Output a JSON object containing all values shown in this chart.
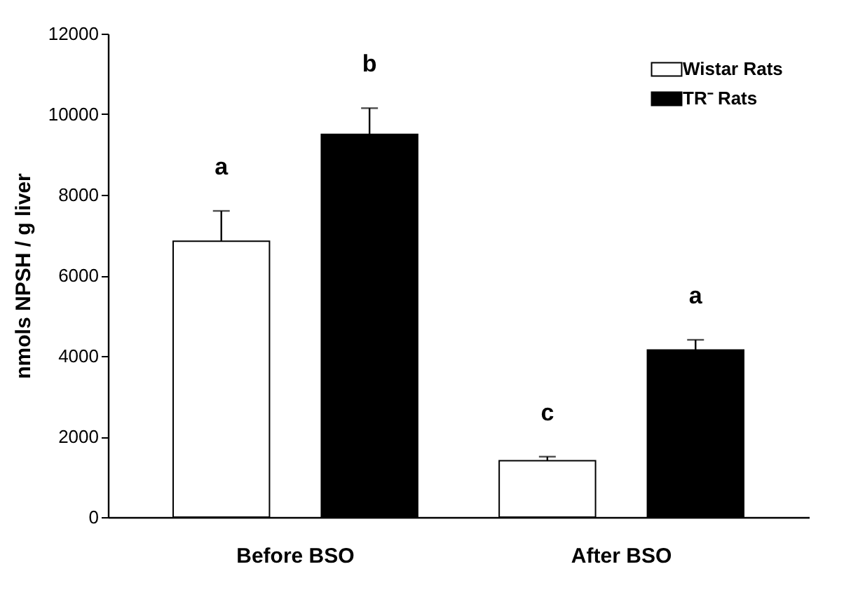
{
  "chart_data": {
    "type": "bar",
    "ylabel": "nmols NPSH / g liver",
    "categories": [
      "Before BSO",
      "After BSO"
    ],
    "series": [
      {
        "name": "Wistar Rats",
        "color": "#ffffff",
        "values": [
          6850,
          1400
        ],
        "errors": [
          [
            6850,
            7600
          ],
          [
            1400,
            1500
          ]
        ]
      },
      {
        "name": "TR⁻ Rats",
        "color": "#000000",
        "values": [
          9500,
          4150
        ],
        "errors": [
          [
            9500,
            10150
          ],
          [
            4150,
            4400
          ]
        ]
      }
    ],
    "ylim": [
      0,
      12000
    ],
    "yticks": [
      0,
      2000,
      4000,
      6000,
      8000,
      10000,
      12000
    ],
    "grid": false,
    "legend": "top right",
    "annotations": [
      "a",
      "b",
      "c",
      "a"
    ]
  }
}
